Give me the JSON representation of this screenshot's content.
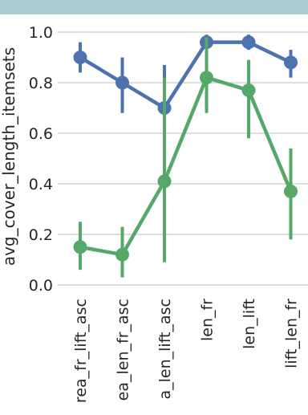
{
  "chart_data": {
    "type": "line",
    "categories": [
      "area_fr_lift_asc",
      "area_len_fr_asc",
      "area_len_lift_asc",
      "len_fr",
      "len_lift",
      "lift_len_fr"
    ],
    "category_labels": [
      "rea_fr_lift_asc",
      "ea_len_fr_asc",
      "a_len_lift_asc",
      "len_fr",
      "len_lift",
      "lift_len_fr"
    ],
    "ylabel": "avg_cover_length_itemsets",
    "xlabel": "",
    "ylim": [
      0.0,
      1.0
    ],
    "yticks": [
      0.0,
      0.2,
      0.4,
      0.6,
      0.8,
      1.0
    ],
    "ytick_labels": [
      "0.0",
      "0.2",
      "0.4",
      "0.6",
      "0.8",
      "1.0"
    ],
    "grid": true,
    "series": [
      {
        "color": "#4c72b0",
        "values": [
          0.9,
          0.8,
          0.7,
          0.96,
          0.96,
          0.88
        ],
        "ci_low": [
          0.84,
          0.68,
          0.4,
          0.93,
          0.93,
          0.82
        ],
        "ci_high": [
          0.96,
          0.9,
          0.87,
          0.99,
          0.99,
          0.93
        ]
      },
      {
        "color": "#55a868",
        "values": [
          0.15,
          0.12,
          0.41,
          0.82,
          0.77,
          0.37
        ],
        "ci_low": [
          0.06,
          0.03,
          0.09,
          0.68,
          0.58,
          0.18
        ],
        "ci_high": [
          0.25,
          0.23,
          0.82,
          0.98,
          0.89,
          0.54
        ]
      }
    ]
  }
}
